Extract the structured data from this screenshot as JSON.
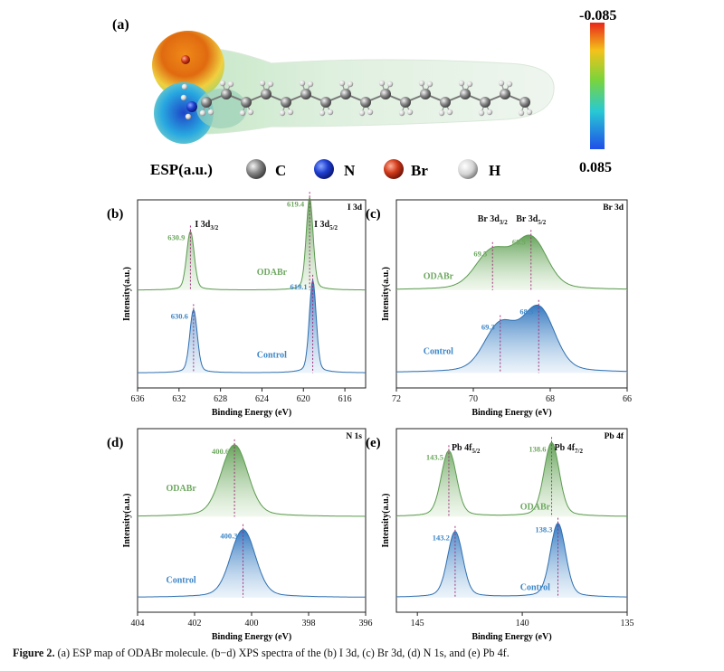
{
  "panel_a": {
    "label": "(a)",
    "esp_title": "ESP(a.u.)",
    "colorbar_top": "-0.085",
    "colorbar_bottom": "0.085",
    "legend": [
      {
        "symbol": "C",
        "color": "#7f7f7f"
      },
      {
        "symbol": "N",
        "color": "#1f3fd0"
      },
      {
        "symbol": "Br",
        "color": "#d03a1a"
      },
      {
        "symbol": "H",
        "color": "#d8d8d8"
      }
    ]
  },
  "colors": {
    "odabr": "#8dbf7e",
    "odabr_text": "#6fa861",
    "control": "#4a90cc",
    "control_text": "#3d86c6",
    "marker": "#a3307c"
  },
  "caption": {
    "label": "Figure 2.",
    "text": " (a) ESP map of ODABr molecule. (b−d) XPS spectra of the (b) I 3d, (c) Br 3d, (d) N 1s, and (e) Pb 4f."
  },
  "chart_data": [
    {
      "id": "b",
      "panel_label": "(b)",
      "type": "line",
      "element": "I 3d",
      "xlabel": "Binding Energy (eV)",
      "ylabel": "Intensity(a.u.)",
      "xlim": [
        636,
        614
      ],
      "xticks": [
        636,
        632,
        628,
        624,
        620,
        616
      ],
      "ylim": [
        0,
        100
      ],
      "series": [
        {
          "name": "ODABr",
          "baseline": 52,
          "peaks": [
            {
              "x": 630.9,
              "h": 28,
              "w": 0.35,
              "label": "630.9"
            },
            {
              "x": 619.4,
              "h": 44,
              "w": 0.32,
              "label": "619.4"
            }
          ]
        },
        {
          "name": "Control",
          "baseline": 8,
          "peaks": [
            {
              "x": 630.6,
              "h": 30,
              "w": 0.35,
              "label": "630.6"
            },
            {
              "x": 619.1,
              "h": 44,
              "w": 0.32,
              "label": "619.1"
            }
          ]
        }
      ],
      "peak_labels": [
        {
          "x": 630.9,
          "main": "I 3d",
          "sub": "3/2"
        },
        {
          "x": 619.4,
          "main": "I 3d",
          "sub": "5/2"
        }
      ]
    },
    {
      "id": "c",
      "panel_label": "(c)",
      "type": "line",
      "element": "Br 3d",
      "xlabel": "Binding Energy (eV)",
      "ylabel": "Intensity(a.u.)",
      "xlim": [
        72,
        66
      ],
      "xticks": [
        72,
        70,
        68,
        66
      ],
      "ylim": [
        0,
        100
      ],
      "series": [
        {
          "name": "ODABr",
          "baseline": 52,
          "peaks": [
            {
              "x": 69.5,
              "h": 18,
              "w": 0.42,
              "label": "69.5"
            },
            {
              "x": 68.5,
              "h": 24,
              "w": 0.4,
              "label": "68.5"
            }
          ]
        },
        {
          "name": "Control",
          "baseline": 8,
          "peaks": [
            {
              "x": 69.3,
              "h": 22,
              "w": 0.4,
              "label": "69.3"
            },
            {
              "x": 68.3,
              "h": 30,
              "w": 0.4,
              "label": "68.3"
            }
          ]
        }
      ],
      "peak_labels": [
        {
          "x": 69.5,
          "main": "Br 3d",
          "sub": "3/2"
        },
        {
          "x": 68.5,
          "main": "Br 3d",
          "sub": "5/2"
        }
      ]
    },
    {
      "id": "d",
      "panel_label": "(d)",
      "type": "line",
      "element": "N 1s",
      "xlabel": "Binding Energy (eV)",
      "ylabel": "Intensity(a.u.)",
      "xlim": [
        404,
        396
      ],
      "xticks": [
        404,
        402,
        400,
        398,
        396
      ],
      "ylim": [
        0,
        100
      ],
      "series": [
        {
          "name": "ODABr",
          "baseline": 52,
          "peaks": [
            {
              "x": 400.6,
              "h": 35,
              "w": 0.45,
              "label": "400.6"
            }
          ]
        },
        {
          "name": "Control",
          "baseline": 8,
          "peaks": [
            {
              "x": 400.3,
              "h": 33,
              "w": 0.42,
              "label": "400.3"
            }
          ]
        }
      ],
      "peak_labels": []
    },
    {
      "id": "e",
      "panel_label": "(e)",
      "type": "line",
      "element": "Pb 4f",
      "xlabel": "Binding Energy (eV)",
      "ylabel": "Intensity(a.u.)",
      "xlim": [
        146,
        135
      ],
      "xticks": [
        145,
        140,
        135
      ],
      "ylim": [
        0,
        100
      ],
      "series": [
        {
          "name": "ODABr",
          "baseline": 52,
          "peaks": [
            {
              "x": 143.5,
              "h": 32,
              "w": 0.35,
              "label": "143.5"
            },
            {
              "x": 138.6,
              "h": 36,
              "w": 0.35,
              "label": "138.6"
            }
          ]
        },
        {
          "name": "Control",
          "baseline": 8,
          "peaks": [
            {
              "x": 143.2,
              "h": 32,
              "w": 0.35,
              "label": "143.2"
            },
            {
              "x": 138.3,
              "h": 36,
              "w": 0.35,
              "label": "138.3"
            }
          ]
        }
      ],
      "peak_labels": [
        {
          "x": 143.5,
          "main": "Pb 4f",
          "sub": "5/2"
        },
        {
          "x": 138.6,
          "main": "Pb 4f",
          "sub": "7/2"
        }
      ]
    }
  ]
}
